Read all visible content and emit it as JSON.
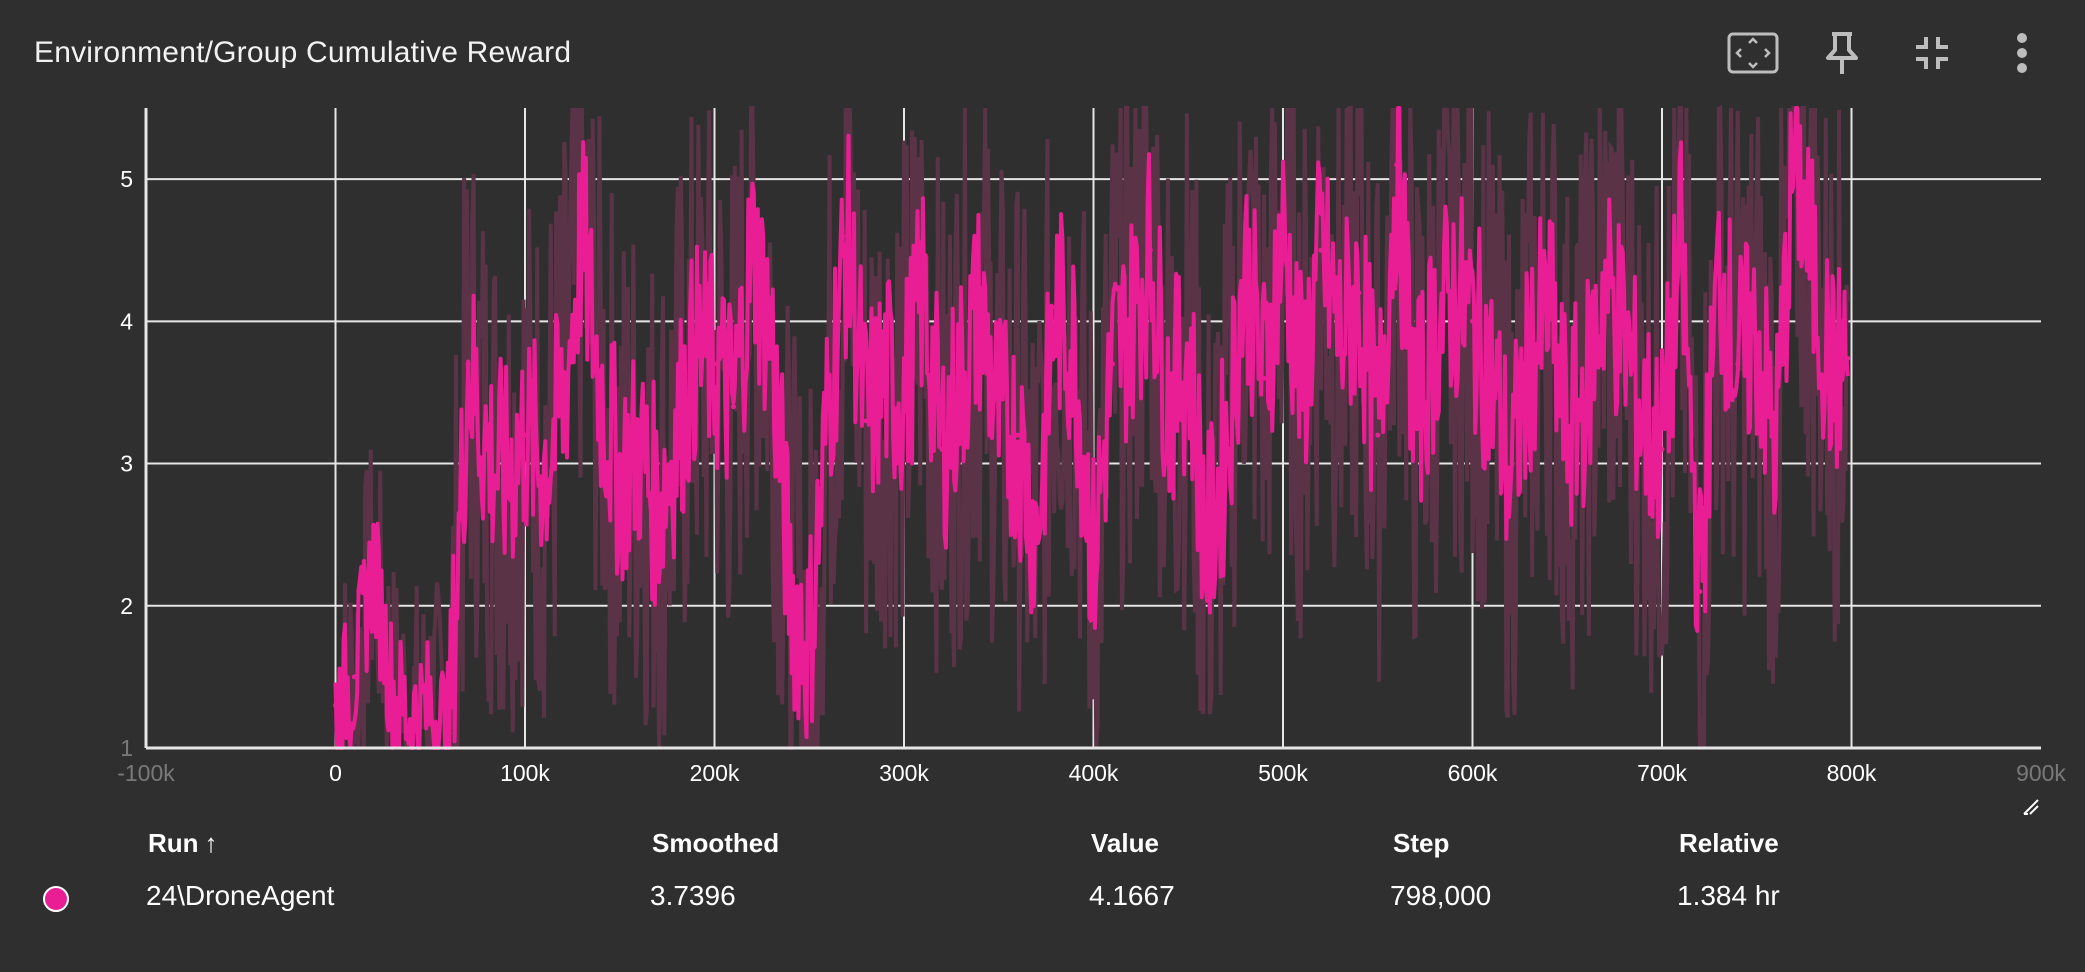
{
  "card": {
    "title": "Environment/Group Cumulative Reward"
  },
  "toolbar": [
    {
      "name": "fit-domain-icon"
    },
    {
      "name": "pin-icon"
    },
    {
      "name": "collapse-icon"
    },
    {
      "name": "more-vert-icon"
    }
  ],
  "colors": {
    "background": "#2f2f2f",
    "smoothed": "#e91e95",
    "raw": "#5a3347",
    "grid": "#e6e6e6"
  },
  "chart_data": {
    "type": "line",
    "title": "Environment/Group Cumulative Reward",
    "xlabel": "",
    "ylabel": "",
    "xlim": [
      -100000,
      900000
    ],
    "ylim": [
      1,
      5.5
    ],
    "grid": true,
    "x_tick_labels": [
      "-100k",
      "0",
      "100k",
      "200k",
      "300k",
      "400k",
      "500k",
      "600k",
      "700k",
      "800k",
      "900k"
    ],
    "y_tick_labels": [
      "1",
      "2",
      "3",
      "4",
      "5"
    ],
    "series": [
      {
        "name": "24\\DroneAgent",
        "x": [
          0,
          10000,
          20000,
          30000,
          40000,
          50000,
          60000,
          70000,
          80000,
          90000,
          100000,
          110000,
          120000,
          130000,
          140000,
          150000,
          160000,
          170000,
          180000,
          190000,
          200000,
          210000,
          220000,
          230000,
          240000,
          250000,
          260000,
          270000,
          280000,
          290000,
          300000,
          310000,
          320000,
          330000,
          340000,
          350000,
          360000,
          370000,
          380000,
          390000,
          400000,
          410000,
          420000,
          430000,
          440000,
          450000,
          460000,
          470000,
          480000,
          490000,
          500000,
          510000,
          520000,
          530000,
          540000,
          550000,
          560000,
          570000,
          580000,
          590000,
          600000,
          610000,
          620000,
          630000,
          640000,
          650000,
          660000,
          670000,
          680000,
          690000,
          700000,
          710000,
          720000,
          730000,
          740000,
          750000,
          760000,
          770000,
          780000,
          790000,
          798000
        ],
        "values": [
          1.3,
          1.5,
          2.3,
          1.4,
          1.2,
          1.3,
          1.1,
          3.7,
          3.1,
          2.9,
          3.2,
          3.0,
          3.4,
          4.6,
          3.5,
          2.9,
          3.1,
          2.7,
          3.2,
          3.8,
          3.7,
          3.4,
          4.5,
          3.9,
          2.1,
          1.7,
          3.4,
          4.6,
          3.3,
          3.6,
          3.5,
          4.2,
          3.1,
          3.6,
          4.1,
          3.3,
          3.2,
          2.5,
          4.1,
          3.8,
          2.3,
          3.7,
          4.0,
          4.5,
          3.4,
          3.8,
          2.4,
          3.1,
          4.4,
          3.6,
          4.6,
          3.5,
          4.5,
          3.9,
          4.2,
          3.2,
          5.1,
          3.3,
          3.9,
          4.2,
          4.0,
          3.6,
          2.9,
          3.7,
          4.1,
          3.2,
          3.5,
          4.3,
          3.9,
          3.3,
          3.1,
          4.5,
          2.1,
          4.4,
          3.7,
          3.9,
          3.1,
          5.2,
          4.3,
          3.6,
          3.7396
        ]
      }
    ]
  },
  "table": {
    "headers": {
      "run": "Run",
      "run_sort": "↑",
      "smoothed": "Smoothed",
      "value": "Value",
      "step": "Step",
      "relative": "Relative"
    },
    "rows": [
      {
        "run": "24\\DroneAgent",
        "smoothed": "3.7396",
        "value": "4.1667",
        "step": "798,000",
        "relative": "1.384 hr"
      }
    ]
  }
}
